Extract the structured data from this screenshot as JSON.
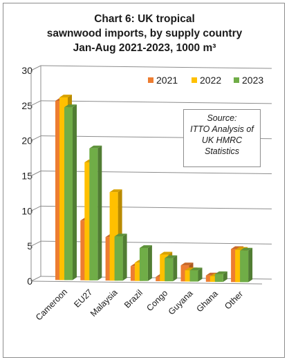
{
  "chart_data": {
    "type": "bar",
    "title_lines": [
      "Chart 6: UK tropical",
      "sawnwood imports, by supply country",
      "Jan-Aug 2021-2023, 1000 m³"
    ],
    "categories": [
      "Cameroon",
      "EU27",
      "Malaysia",
      "Brazil",
      "Congo",
      "Guyana",
      "Ghana",
      "Other"
    ],
    "series": [
      {
        "name": "2021",
        "color": "#ED7D31",
        "values": [
          25.5,
          8.5,
          6.2,
          2.1,
          0.6,
          2.3,
          0.9,
          4.7
        ]
      },
      {
        "name": "2022",
        "color": "#FFC000",
        "values": [
          26.0,
          16.8,
          12.6,
          2.6,
          3.8,
          1.6,
          0.8,
          4.6
        ]
      },
      {
        "name": "2023",
        "color": "#70AD47",
        "values": [
          24.6,
          18.8,
          6.3,
          4.7,
          3.3,
          1.6,
          1.1,
          4.5
        ]
      }
    ],
    "yticks": [
      "0",
      "5",
      "10",
      "15",
      "20",
      "25",
      "30"
    ],
    "ylim": [
      0,
      30
    ],
    "grid": true,
    "legend_position": "top-right",
    "source_lines": [
      "Source:",
      "ITTO Analysis of",
      "UK HMRC",
      "Statistics"
    ]
  }
}
